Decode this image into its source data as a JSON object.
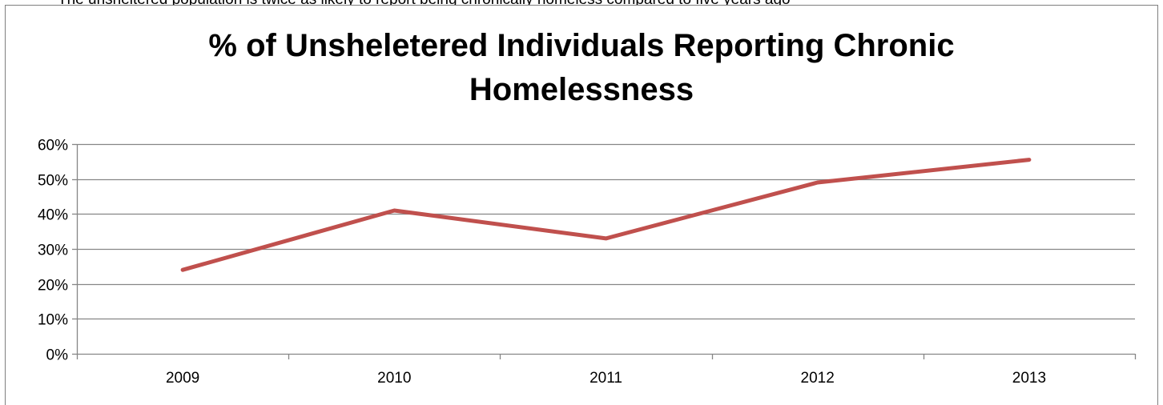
{
  "caption": "The unsheltered population is twice as likely to report being chronically homeless compared to five years ago",
  "chart_data": {
    "type": "line",
    "title_line1": "% of Unsheletered Individuals Reporting Chronic",
    "title_line2": "Homelessness",
    "categories": [
      "2009",
      "2010",
      "2011",
      "2012",
      "2013"
    ],
    "series": [
      {
        "values": [
          0.24,
          0.41,
          0.33,
          0.49,
          0.555
        ],
        "color": "#c0504d"
      }
    ],
    "ylim": [
      0,
      0.6
    ],
    "yticks": [
      0,
      0.1,
      0.2,
      0.3,
      0.4,
      0.5,
      0.6
    ],
    "ytick_labels": [
      "0%",
      "10%",
      "20%",
      "30%",
      "40%",
      "50%",
      "60%"
    ],
    "xlabel": "",
    "ylabel": "",
    "grid": true,
    "legend": "none",
    "gridline_color": "#868686"
  }
}
